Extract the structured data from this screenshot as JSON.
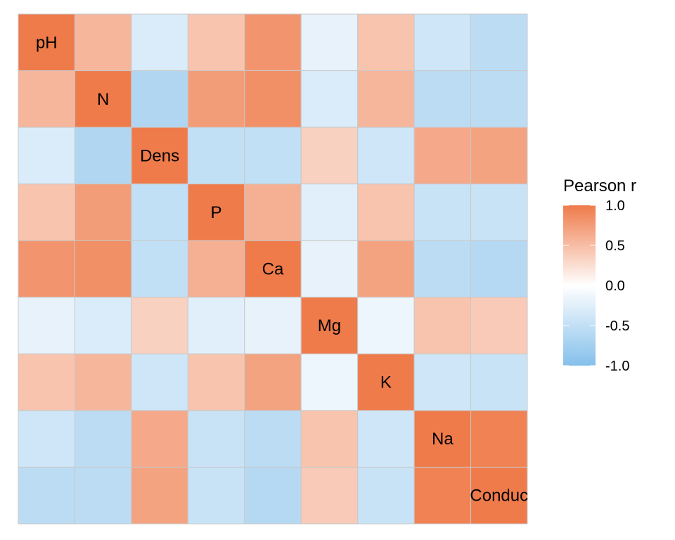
{
  "chart_data": {
    "type": "heatmap",
    "title": "",
    "variables": [
      "pH",
      "N",
      "Dens",
      "P",
      "Ca",
      "Mg",
      "K",
      "Na",
      "Conduc"
    ],
    "matrix": [
      [
        1.0,
        0.55,
        -0.3,
        0.45,
        0.8,
        -0.2,
        0.45,
        -0.4,
        -0.55
      ],
      [
        0.55,
        1.0,
        -0.65,
        0.75,
        0.85,
        -0.3,
        0.55,
        -0.55,
        -0.55
      ],
      [
        -0.3,
        -0.65,
        1.0,
        -0.5,
        -0.5,
        0.35,
        -0.4,
        0.65,
        0.7
      ],
      [
        0.45,
        0.75,
        -0.5,
        1.0,
        0.6,
        -0.25,
        0.45,
        -0.45,
        -0.45
      ],
      [
        0.8,
        0.85,
        -0.5,
        0.6,
        1.0,
        -0.2,
        0.7,
        -0.55,
        -0.6
      ],
      [
        -0.2,
        -0.3,
        0.35,
        -0.25,
        -0.2,
        1.0,
        -0.15,
        0.45,
        0.4
      ],
      [
        0.45,
        0.55,
        -0.4,
        0.45,
        0.7,
        -0.15,
        1.0,
        -0.4,
        -0.45
      ],
      [
        -0.4,
        -0.55,
        0.65,
        -0.45,
        -0.55,
        0.45,
        -0.4,
        1.0,
        0.95
      ],
      [
        -0.55,
        -0.55,
        0.7,
        -0.45,
        -0.6,
        0.4,
        -0.45,
        0.95,
        1.0
      ]
    ],
    "color_scale": {
      "low": "#85c0eb",
      "mid": "#ffffff",
      "high": "#ef7b4b",
      "domain": [
        -1,
        0,
        1
      ]
    },
    "grid": false,
    "legend": {
      "title": "Pearson r",
      "position": "right",
      "ticks": [
        1.0,
        0.5,
        0.0,
        -0.5,
        -1.0
      ],
      "tick_labels": [
        "1.0",
        "0.5",
        "0.0",
        "-0.5",
        "-1.0"
      ]
    }
  }
}
